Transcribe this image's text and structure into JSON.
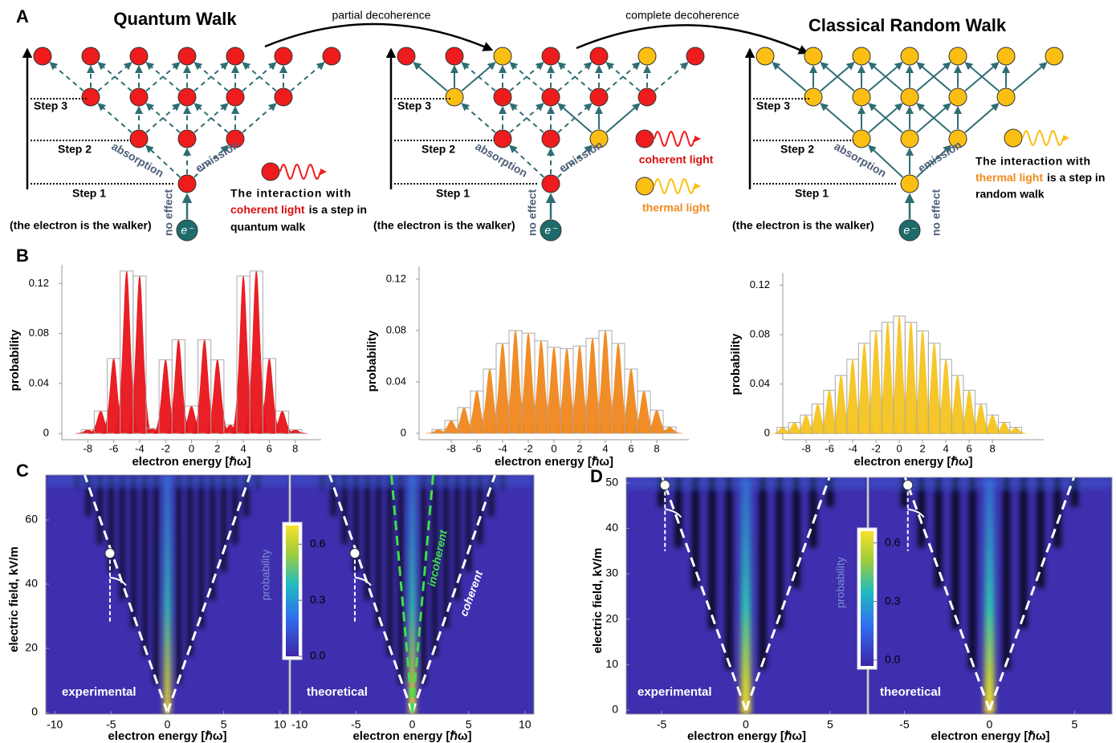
{
  "panel_labels": {
    "a": "A",
    "b": "B",
    "c": "C",
    "d": "D"
  },
  "diagram": {
    "titles": [
      "Quantum Walk",
      "Classical Random Walk"
    ],
    "transitions": [
      "partial decoherence",
      "complete decoherence"
    ],
    "steps": [
      "Step 1",
      "Step 2",
      "Step 3"
    ],
    "walker": "(the electron is the walker)",
    "absorption": "absorption",
    "emission": "emission",
    "no_effect": "no effect",
    "electron": "e⁻",
    "coherent_note": [
      "The interaction with",
      "coherent light",
      "is a step in",
      "quantum walk"
    ],
    "thermal_note": [
      "The interaction with",
      "thermal light",
      "is a step in",
      "random walk"
    ],
    "legend": [
      "coherent light",
      "thermal light"
    ]
  },
  "chart_data": [
    {
      "type": "bar",
      "xlabel": "electron energy [ℏω]",
      "ylabel": "probability",
      "color": "#e8141a",
      "x": [
        -8,
        -7,
        -6,
        -5,
        -4,
        -3,
        -2,
        -1,
        0,
        1,
        2,
        3,
        4,
        5,
        6,
        7,
        8
      ],
      "values": [
        0.003,
        0.018,
        0.06,
        0.13,
        0.126,
        0.004,
        0.059,
        0.075,
        0.022,
        0.075,
        0.059,
        0.007,
        0.126,
        0.13,
        0.06,
        0.018,
        0.003
      ],
      "xlim": [
        -10,
        10
      ],
      "xticks": [
        -8,
        -6,
        -4,
        -2,
        0,
        2,
        4,
        6,
        8
      ],
      "ylim": [
        -0.005,
        0.135
      ],
      "yticks": [
        0,
        0.04,
        0.08,
        0.12
      ]
    },
    {
      "type": "bar",
      "xlabel": "electron energy [ℏω]",
      "ylabel": "probability",
      "color": "#f0871c",
      "x": [
        -9,
        -8,
        -7,
        -6,
        -5,
        -4,
        -3,
        -2,
        -1,
        0,
        1,
        2,
        3,
        4,
        5,
        6,
        7,
        8,
        9
      ],
      "values": [
        0.003,
        0.01,
        0.02,
        0.033,
        0.05,
        0.07,
        0.08,
        0.078,
        0.072,
        0.067,
        0.066,
        0.068,
        0.074,
        0.08,
        0.07,
        0.05,
        0.033,
        0.018,
        0.005
      ],
      "xlim": [
        -10.5,
        10.5
      ],
      "xticks": [
        -8,
        -6,
        -4,
        -2,
        0,
        2,
        4,
        6,
        8
      ],
      "ylim": [
        -0.005,
        0.13
      ],
      "yticks": [
        0,
        0.04,
        0.08,
        0.12
      ]
    },
    {
      "type": "bar",
      "xlabel": "electron energy [ℏω]",
      "ylabel": "probability",
      "color": "#f6c420",
      "x": [
        -10,
        -9,
        -8,
        -7,
        -6,
        -5,
        -4,
        -3,
        -2,
        -1,
        0,
        1,
        2,
        3,
        4,
        5,
        6,
        7,
        8,
        9,
        10
      ],
      "values": [
        0.005,
        0.009,
        0.015,
        0.024,
        0.035,
        0.047,
        0.06,
        0.073,
        0.083,
        0.09,
        0.095,
        0.09,
        0.083,
        0.073,
        0.06,
        0.047,
        0.035,
        0.024,
        0.015,
        0.009,
        0.005
      ],
      "xlim": [
        -10,
        12.4
      ],
      "xticks": [
        -8,
        -6,
        -4,
        -2,
        0,
        2,
        4,
        6,
        8
      ],
      "ylim": [
        -0.005,
        0.13
      ],
      "yticks": [
        0,
        0.04,
        0.08,
        0.12
      ]
    },
    {
      "type": "heatmap",
      "xlabel": "electron energy [ℏω]",
      "ylabel": "electric field, kV/m",
      "panels": [
        "experimental",
        "theoretical"
      ],
      "annotations": [
        "incoherent",
        "coherent"
      ],
      "xlim": [
        -10.8,
        10.8
      ],
      "xticks": [
        -10,
        -5,
        0,
        5,
        10
      ],
      "ylim": [
        -0.5,
        74
      ],
      "yticks": [
        0,
        20,
        40,
        60
      ],
      "colorbar": {
        "label": "probability",
        "lim": [
          0,
          0.7
        ],
        "ticks": [
          {
            "value": 0,
            "label": "0.0"
          },
          0.3,
          0.6
        ]
      }
    },
    {
      "type": "heatmap",
      "xlabel": "electron energy [ℏω]",
      "ylabel": "electric field, kV/m",
      "panels": [
        "experimental",
        "theoretical"
      ],
      "xlim": [
        -7.1,
        7.2
      ],
      "xticks": [
        -5,
        0,
        5
      ],
      "ylim": [
        -0.9,
        51.2
      ],
      "yticks": [
        0,
        10,
        20,
        30,
        40,
        50
      ],
      "colorbar": {
        "label": "probability",
        "lim": [
          -0.03,
          0.66
        ],
        "ticks": [
          {
            "value": 0,
            "label": "0.0"
          },
          0.3,
          0.6
        ]
      }
    }
  ]
}
